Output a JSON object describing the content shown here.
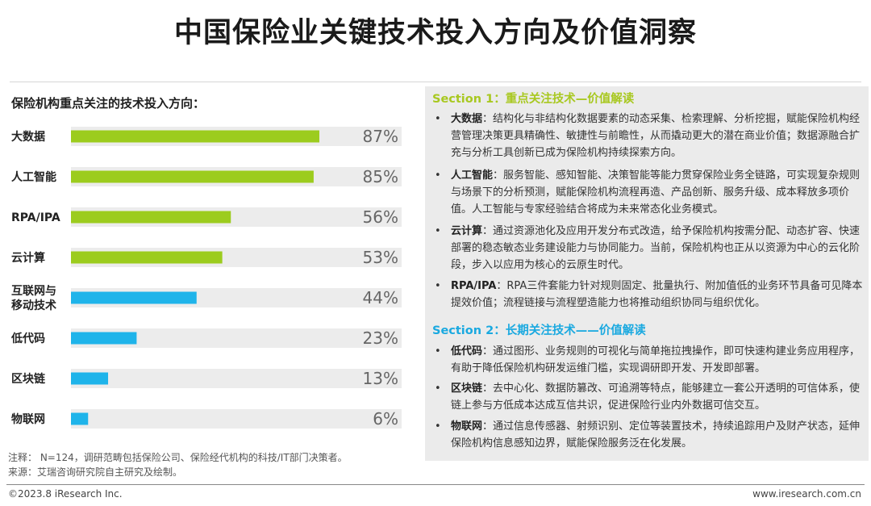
{
  "page": {
    "title": "中国保险业关键技术投入方向及价值洞察"
  },
  "chart_data": {
    "type": "bar",
    "orientation": "horizontal",
    "title": "保险机构重点关注的技术投入方向：",
    "categories": [
      "大数据",
      "人工智能",
      "RPA/IPA",
      "云计算",
      "互联网与移动技术",
      "低代码",
      "区块链",
      "物联网"
    ],
    "category_display": [
      [
        "大数据"
      ],
      [
        "人工智能"
      ],
      [
        "RPA/IPA"
      ],
      [
        "云计算"
      ],
      [
        "互联网与",
        "移动技术"
      ],
      [
        "低代码"
      ],
      [
        "区块链"
      ],
      [
        "物联网"
      ]
    ],
    "values": [
      87,
      85,
      56,
      53,
      44,
      23,
      13,
      6
    ],
    "value_labels": [
      "87%",
      "85%",
      "56%",
      "53%",
      "44%",
      "23%",
      "13%",
      "6%"
    ],
    "group": [
      "section1",
      "section1",
      "section1",
      "section1",
      "section2",
      "section2",
      "section2",
      "section2"
    ],
    "xlim": [
      0,
      100
    ],
    "unit": "%",
    "colors": {
      "section1": "#9ccc1e",
      "section2": "#1fb4ea",
      "track": "#ececec"
    }
  },
  "insights": {
    "section1": {
      "prefix": "Section 1：",
      "title": "重点关注技术—价值解读",
      "items": [
        {
          "term": "大数据",
          "text": "：结构化与非结构化数据要素的动态采集、检索理解、分析挖掘，赋能保险机构经营管理决策更具精确性、敏捷性与前瞻性，从而撬动更大的潜在商业价值；数据源融合扩充与分析工具创新已成为保险机构持续探索方向。"
        },
        {
          "term": "人工智能",
          "text": "：服务智能、感知智能、决策智能等能力贯穿保险业务全链路，可实现复杂规则与场景下的分析预测，赋能保险机构流程再造、产品创新、服务升级、成本释放多项价值。人工智能与专家经验结合将成为未来常态化业务模式。"
        },
        {
          "term": "云计算",
          "text": "：通过资源池化及应用开发分布式改造，给予保险机构按需分配、动态扩容、快速部署的稳态敏态业务建设能力与协同能力。当前，保险机构也正从以资源为中心的云化阶段，步入以应用为核心的云原生时代。"
        },
        {
          "term": "RPA/IPA",
          "text": "：RPA三件套能力针对规则固定、批量执行、附加值低的业务环节具备可见降本提效价值；流程链接与流程塑造能力也将推动组织协同与组织优化。"
        }
      ]
    },
    "section2": {
      "prefix": "Section 2：",
      "title": "长期关注技术——价值解读",
      "items": [
        {
          "term": "低代码",
          "text": "：通过图形、业务规则的可视化与简单拖拉拽操作，即可快速构建业务应用程序，有助于降低保险机构研发运维门槛，实现调研即开发、开发即部署。"
        },
        {
          "term": "区块链",
          "text": "：去中心化、数据防篡改、可追溯等特点，能够建立一套公开透明的可信体系，使链上参与方低成本达成互信共识，促进保险行业内外数据可信交互。"
        },
        {
          "term": "物联网",
          "text": "：通过信息传感器、射频识别、定位等装置技术，持续追踪用户及财产状态，延伸保险机构信息感知边界，赋能保险服务泛在化发展。"
        }
      ]
    },
    "bullet": "•"
  },
  "footer": {
    "note": "注释：  N=124，调研范畴包括保险公司、保险经代机构的科技/IT部门决策者。",
    "source": "来源：艾瑞咨询研究院自主研究及绘制。",
    "copyright": "©2023.8 iResearch Inc.",
    "website": "www.iresearch.com.cn"
  }
}
